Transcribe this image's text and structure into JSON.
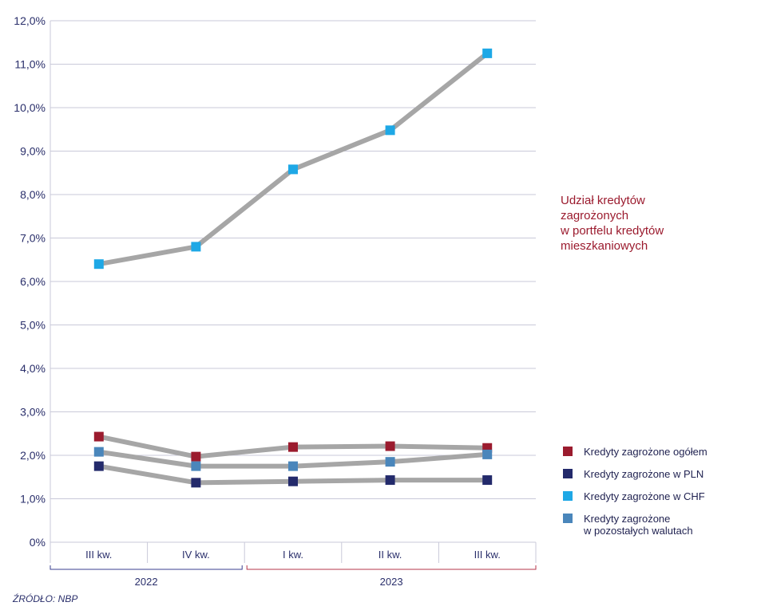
{
  "chart_data": {
    "type": "line",
    "title": "Udział kredytów zagrożonych w portfelu kredytów mieszkaniowych",
    "title_lines": [
      "Udział kredytów",
      "zagrożonych",
      "w portfelu kredytów",
      "mieszkaniowych"
    ],
    "categories": [
      "III kw.",
      "IV kw.",
      "I kw.",
      "II kw.",
      "III kw."
    ],
    "years": [
      {
        "label": "2022",
        "color": "#3a3f8f"
      },
      {
        "label": "2023",
        "color": "#b5364a"
      }
    ],
    "category_year_index": [
      0,
      0,
      1,
      1,
      1
    ],
    "yticks": [
      "0%",
      "1,0%",
      "2,0%",
      "3,0%",
      "4,0%",
      "5,0%",
      "6,0%",
      "7,0%",
      "8,0%",
      "9,0%",
      "10,0%",
      "11,0%",
      "12,0%"
    ],
    "ylim": [
      0,
      12
    ],
    "grid": true,
    "line_color": "#a6a6a6",
    "series": [
      {
        "name": "Kredyty zagrożone ogółem",
        "color": "#9b1b2e",
        "values": [
          2.43,
          1.97,
          2.19,
          2.21,
          2.17
        ]
      },
      {
        "name": "Kredyty zagrożone w PLN",
        "color": "#232a6b",
        "values": [
          1.75,
          1.37,
          1.4,
          1.43,
          1.43
        ]
      },
      {
        "name": "Kredyty zagrożone w CHF",
        "color": "#1ea8e6",
        "values": [
          6.4,
          6.8,
          8.58,
          9.48,
          11.25
        ]
      },
      {
        "name": "Kredyty zagrożone w pozostałych walutach",
        "name_lines": [
          "Kredyty zagrożone",
          "w pozostałych walutach"
        ],
        "color": "#4a86bb",
        "values": [
          2.08,
          1.75,
          1.75,
          1.85,
          2.02
        ]
      }
    ],
    "legend_position": "right"
  },
  "source": "ŹRÓDŁO: NBP"
}
